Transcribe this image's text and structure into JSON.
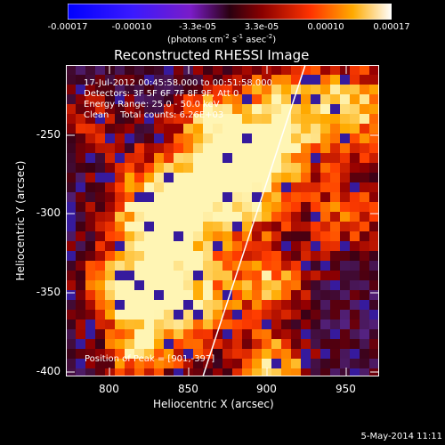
{
  "colorbar": {
    "ticks": [
      "-0.00017",
      "-0.00010",
      "-3.3e-05",
      "3.3e-05",
      "0.00010",
      "0.00017"
    ],
    "unit_text": "(photons cm",
    "unit_sup1": "-2",
    "unit_mid": " s",
    "unit_sup2": "-1",
    "unit_end": " asec",
    "unit_sup3": "-2",
    "unit_close": ")"
  },
  "title": "Reconstructed RHESSI Image",
  "info": {
    "line1": "17-Jul-2012 00:45:58.000 to 00:51:58.000",
    "line2": "Detectors: 3F 5F 6F 7F 8F 9F, Att 0",
    "line3": "Energy Range: 25.0 - 50.0 keV",
    "line4": "Clean    Total counts: 6.26E+03"
  },
  "peak_label": "Position of Peak = [901,-397]",
  "x_axis": {
    "title": "Heliocentric X (arcsec)",
    "ticks": [
      "800",
      "850",
      "900",
      "950"
    ]
  },
  "y_axis": {
    "title": "Heliocentric Y (arcsec)",
    "ticks": [
      "-250",
      "-300",
      "-350",
      "-400"
    ]
  },
  "footer_date": "5-May-2014 11:11",
  "colors": {
    "background": "#000000",
    "limb_line": "#ffffff"
  }
}
